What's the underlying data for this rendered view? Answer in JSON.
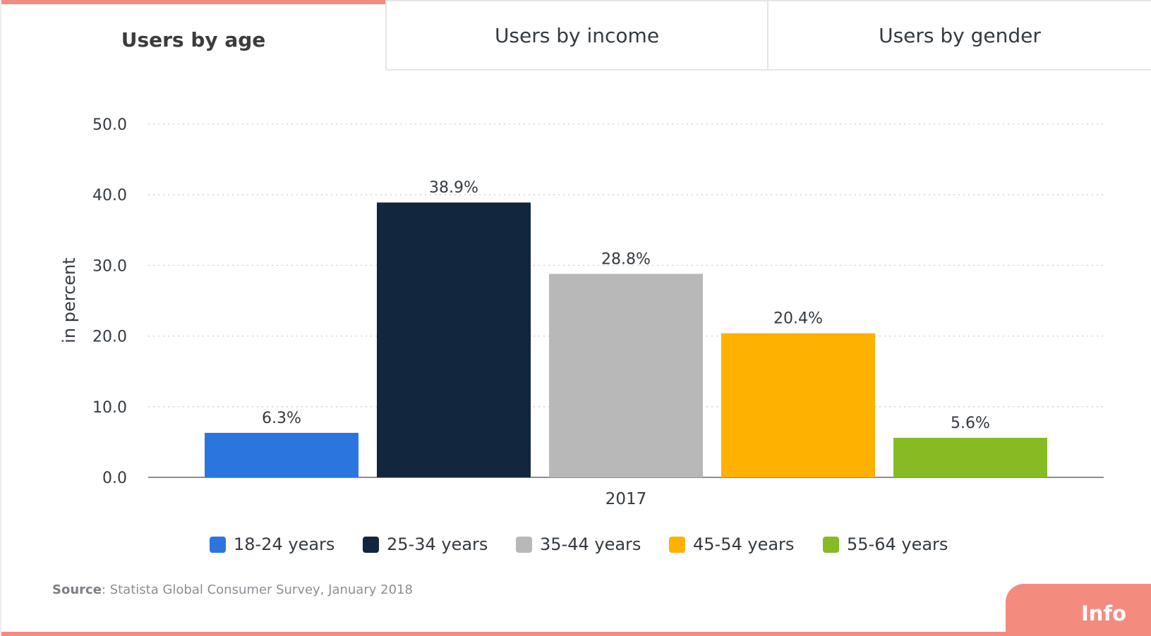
{
  "tabs": [
    {
      "label": "Users by age",
      "active": true
    },
    {
      "label": "Users by income",
      "active": false
    },
    {
      "label": "Users by gender",
      "active": false
    }
  ],
  "colors": {
    "accent": "#f48b7f",
    "grid": "#cfcfcf",
    "axis": "#8c8c8c",
    "text": "#333a40"
  },
  "chart_data": {
    "type": "bar",
    "categories": [
      "2017"
    ],
    "series": [
      {
        "name": "18-24 years",
        "color": "#2a76de",
        "values": [
          6.3
        ],
        "label": "6.3%"
      },
      {
        "name": "25-34 years",
        "color": "#12263e",
        "values": [
          38.9
        ],
        "label": "38.9%"
      },
      {
        "name": "35-44 years",
        "color": "#b8b8b8",
        "values": [
          28.8
        ],
        "label": "28.8%"
      },
      {
        "name": "45-54 years",
        "color": "#feb100",
        "values": [
          20.4
        ],
        "label": "20.4%"
      },
      {
        "name": "55-64 years",
        "color": "#86bb24",
        "values": [
          5.6
        ],
        "label": "5.6%"
      }
    ],
    "ylabel": "in percent",
    "xlabel": "",
    "ylim": [
      0,
      50
    ],
    "yticks": [
      "0.0",
      "10.0",
      "20.0",
      "30.0",
      "40.0",
      "50.0"
    ],
    "grid": true,
    "legend": "bottom"
  },
  "source": {
    "label": "Source",
    "text": ": Statista Global Consumer Survey, January 2018"
  },
  "info_button": {
    "label": "Info"
  }
}
